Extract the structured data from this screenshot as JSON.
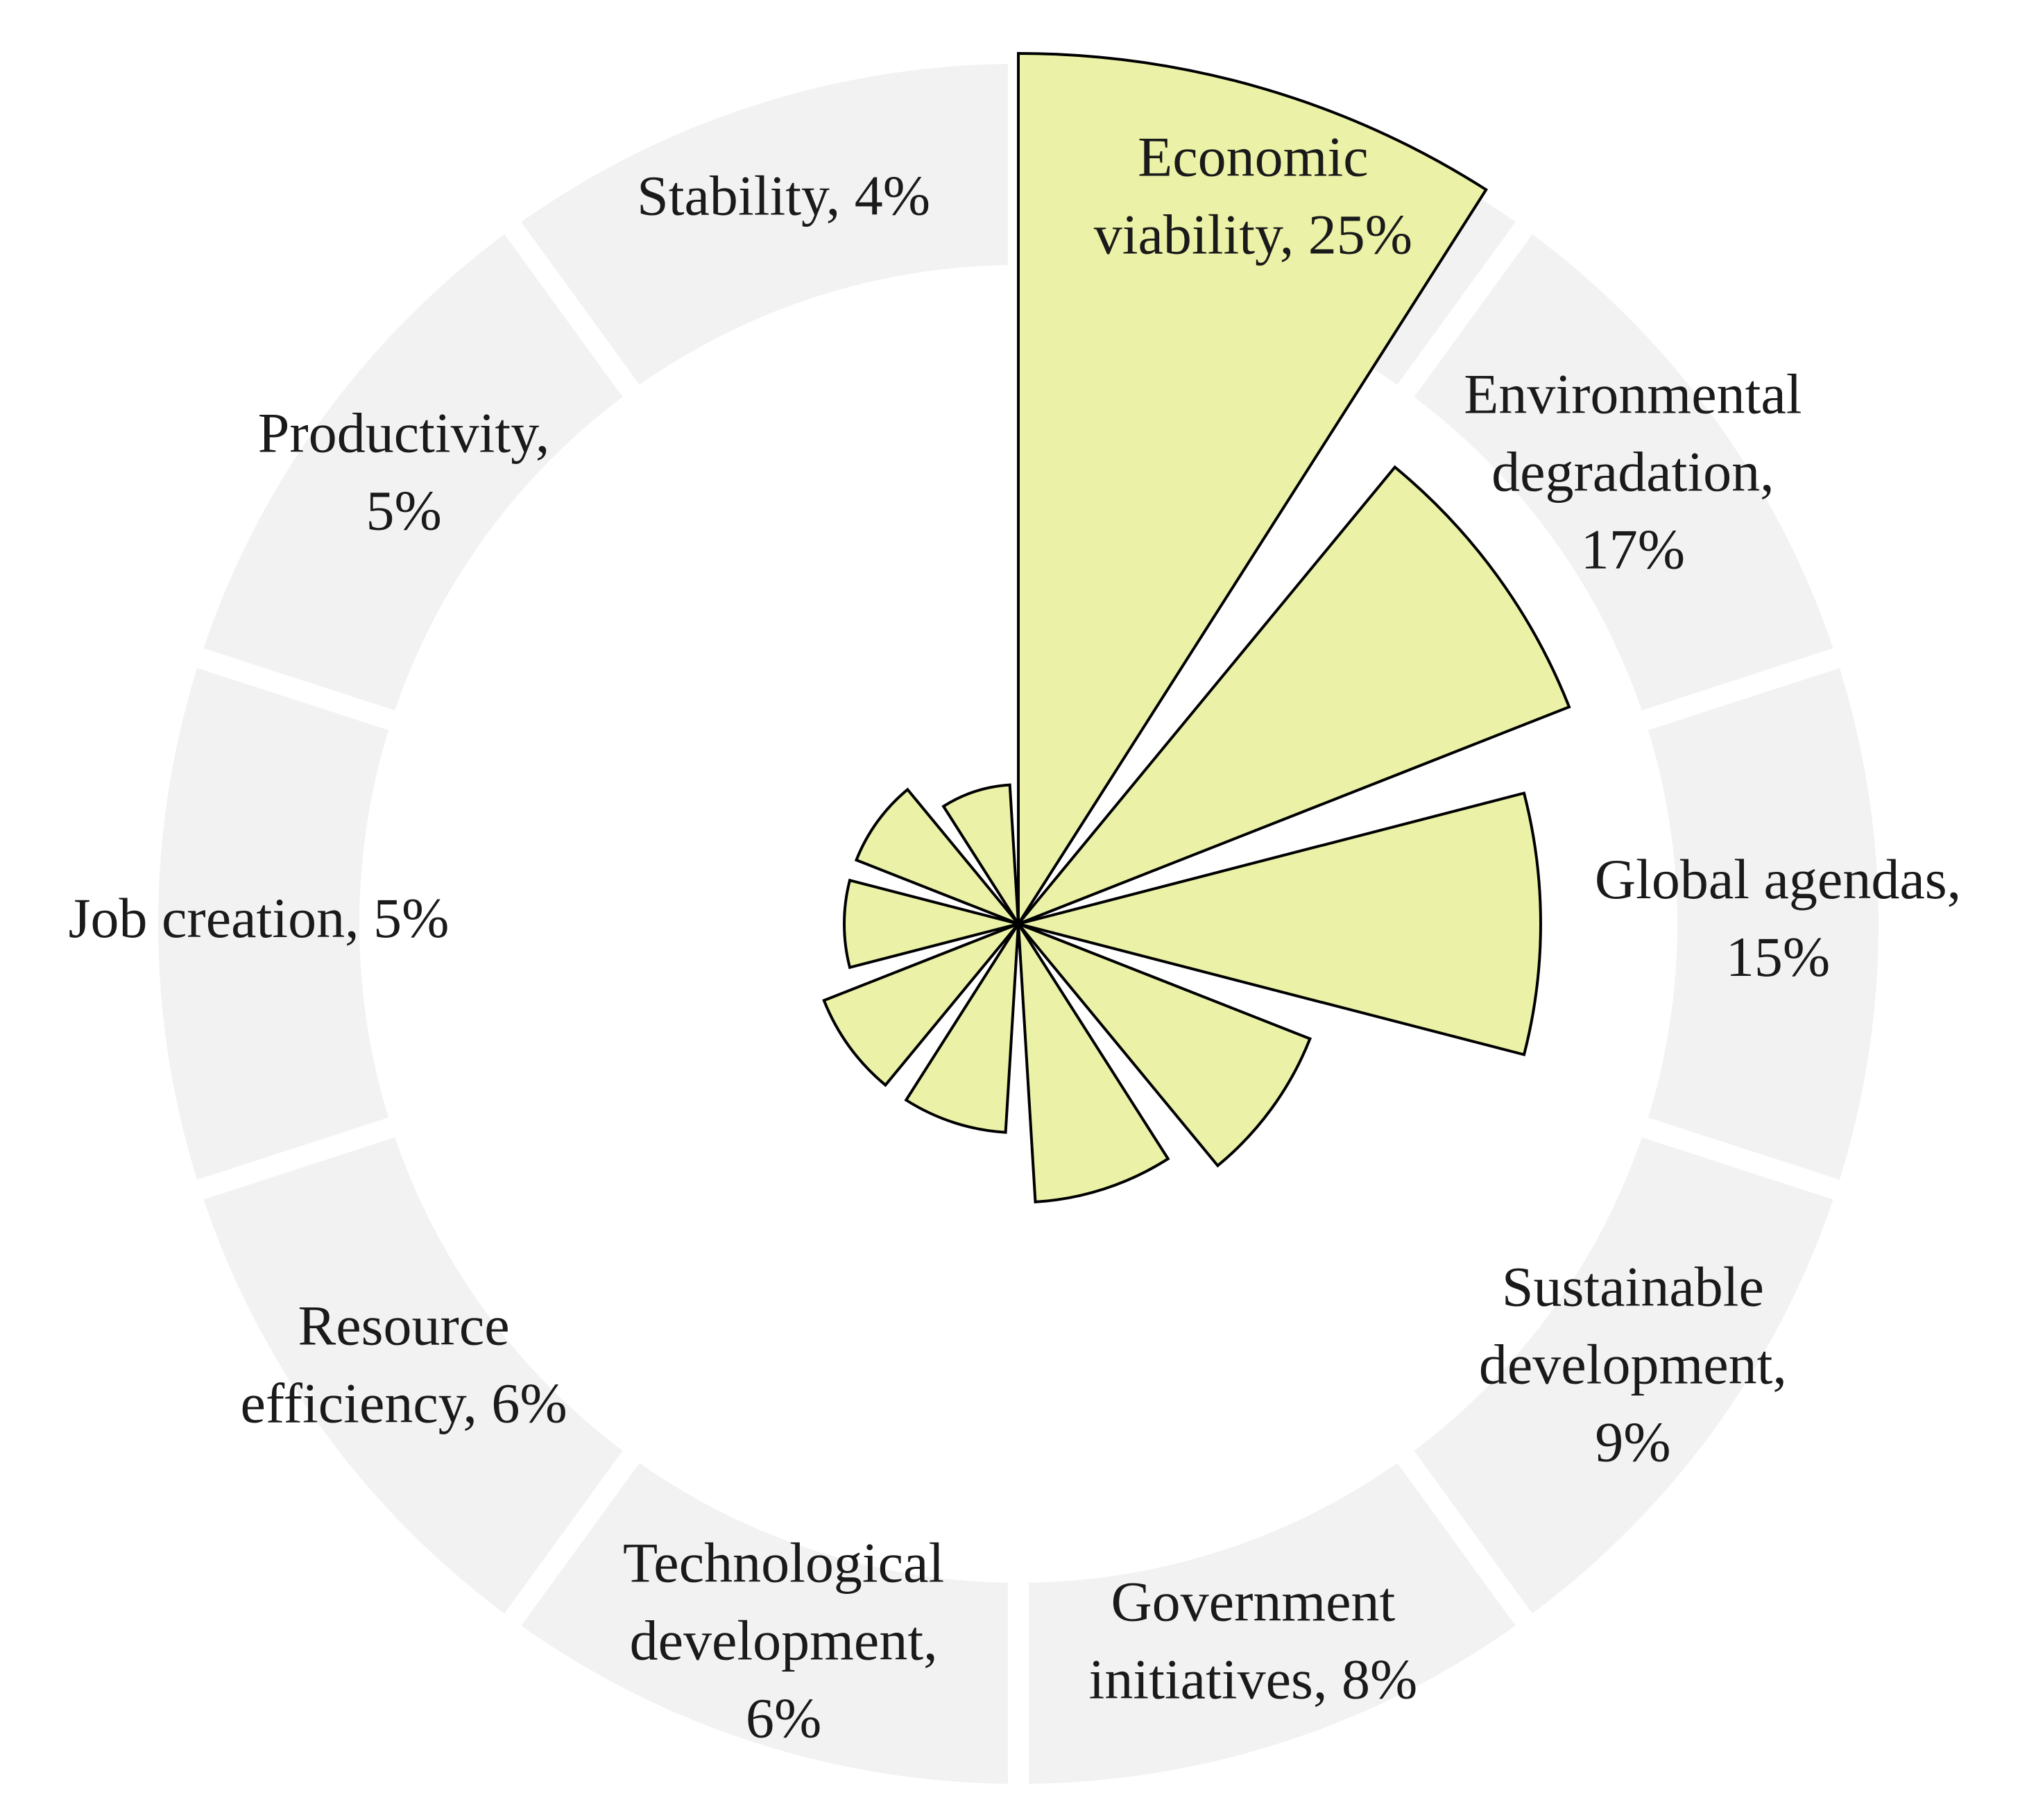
{
  "chart_data": {
    "type": "polar-area",
    "title": "",
    "unit": "%",
    "max_value": 25,
    "colors": {
      "petal_fill": "#ebf1a6",
      "petal_stroke": "#000000",
      "ring": "#f2f2f2",
      "text": "#1a1a1a"
    },
    "categories": [
      {
        "name": "Economic viability",
        "value": 25,
        "label_lines": [
          "Economic",
          "viability, 25%"
        ]
      },
      {
        "name": "Environmental degradation",
        "value": 17,
        "label_lines": [
          "Environmental",
          "degradation,",
          "17%"
        ]
      },
      {
        "name": "Global agendas",
        "value": 15,
        "label_lines": [
          "Global agendas,",
          "15%"
        ]
      },
      {
        "name": "Sustainable development",
        "value": 9,
        "label_lines": [
          "Sustainable",
          "development,",
          "9%"
        ]
      },
      {
        "name": "Government initiatives",
        "value": 8,
        "label_lines": [
          "Government",
          "initiatives, 8%"
        ]
      },
      {
        "name": "Technological development",
        "value": 6,
        "label_lines": [
          "Technological",
          "development,",
          "6%"
        ]
      },
      {
        "name": "Resource efficiency",
        "value": 6,
        "label_lines": [
          "Resource",
          "efficiency, 6%"
        ]
      },
      {
        "name": "Job creation",
        "value": 5,
        "label_lines": [
          "Job creation, 5%"
        ]
      },
      {
        "name": "Productivity",
        "value": 5,
        "label_lines": [
          "Productivity,",
          "5%"
        ]
      },
      {
        "name": "Stability",
        "value": 4,
        "label_lines": [
          "Stability, 4%"
        ]
      }
    ]
  }
}
